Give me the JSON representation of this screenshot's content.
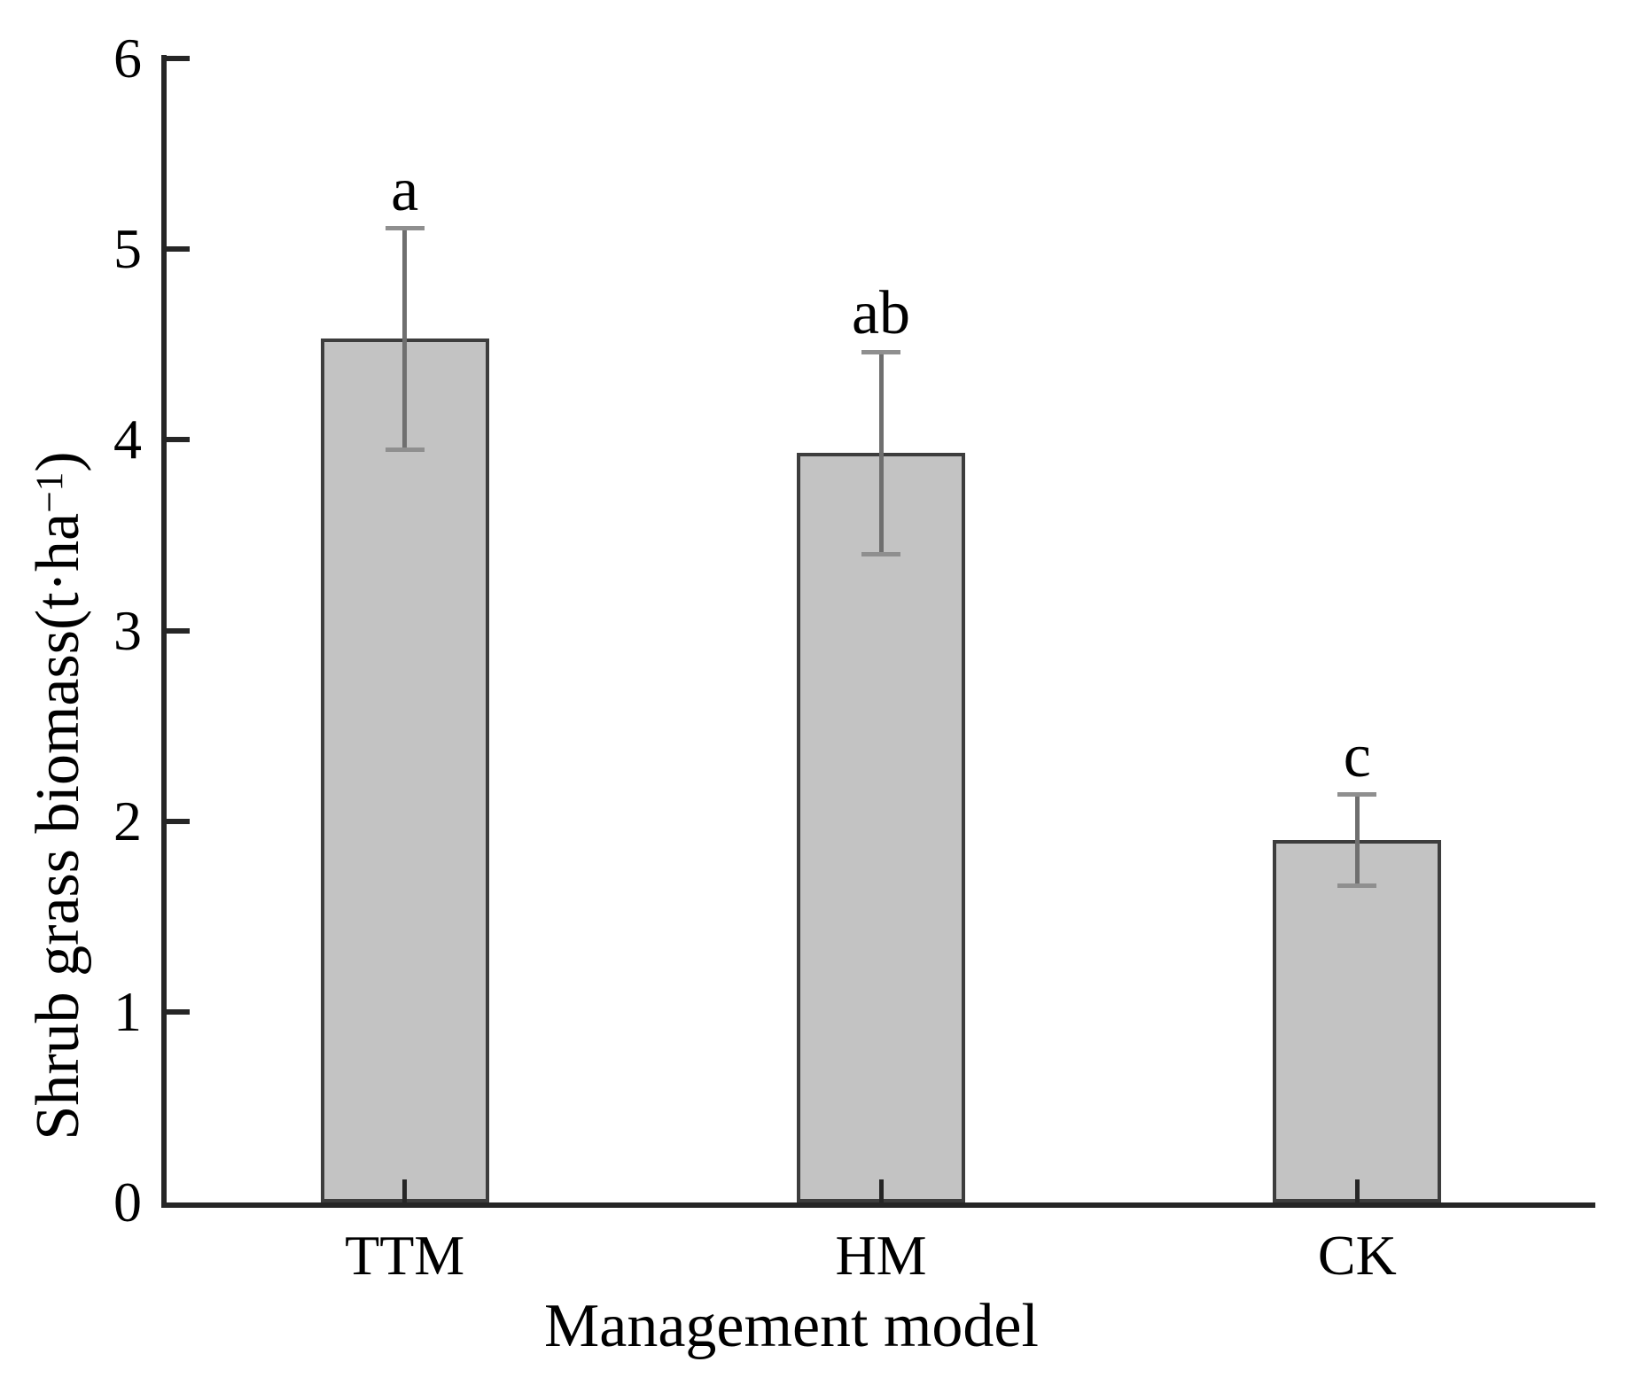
{
  "chart_data": {
    "type": "bar",
    "title": "",
    "categories": [
      "TTM",
      "HM",
      "CK"
    ],
    "values": [
      4.53,
      3.93,
      1.9
    ],
    "errors": [
      0.58,
      0.53,
      0.24
    ],
    "sig_letters": [
      "a",
      "ab",
      "c"
    ],
    "xlabel": "Management model",
    "ylabel": "Shrub grass biomass(t·ha⁻¹)",
    "ylabel_parts": {
      "prefix": "Shrub grass biomass(t·ha",
      "sup": "−1",
      "suffix": ")"
    },
    "ylim": [
      0,
      6
    ],
    "yticks": [
      0,
      1,
      2,
      3,
      4,
      5,
      6
    ],
    "grid": false,
    "legend_position": "none",
    "colors": {
      "bar_fill": "#c3c3c3",
      "bar_border": "#3d3d3d",
      "axis": "#262626",
      "error_line": "#6f6f6f",
      "error_cap": "#8f8f8f",
      "text": "#000000",
      "background": "#ffffff"
    }
  }
}
